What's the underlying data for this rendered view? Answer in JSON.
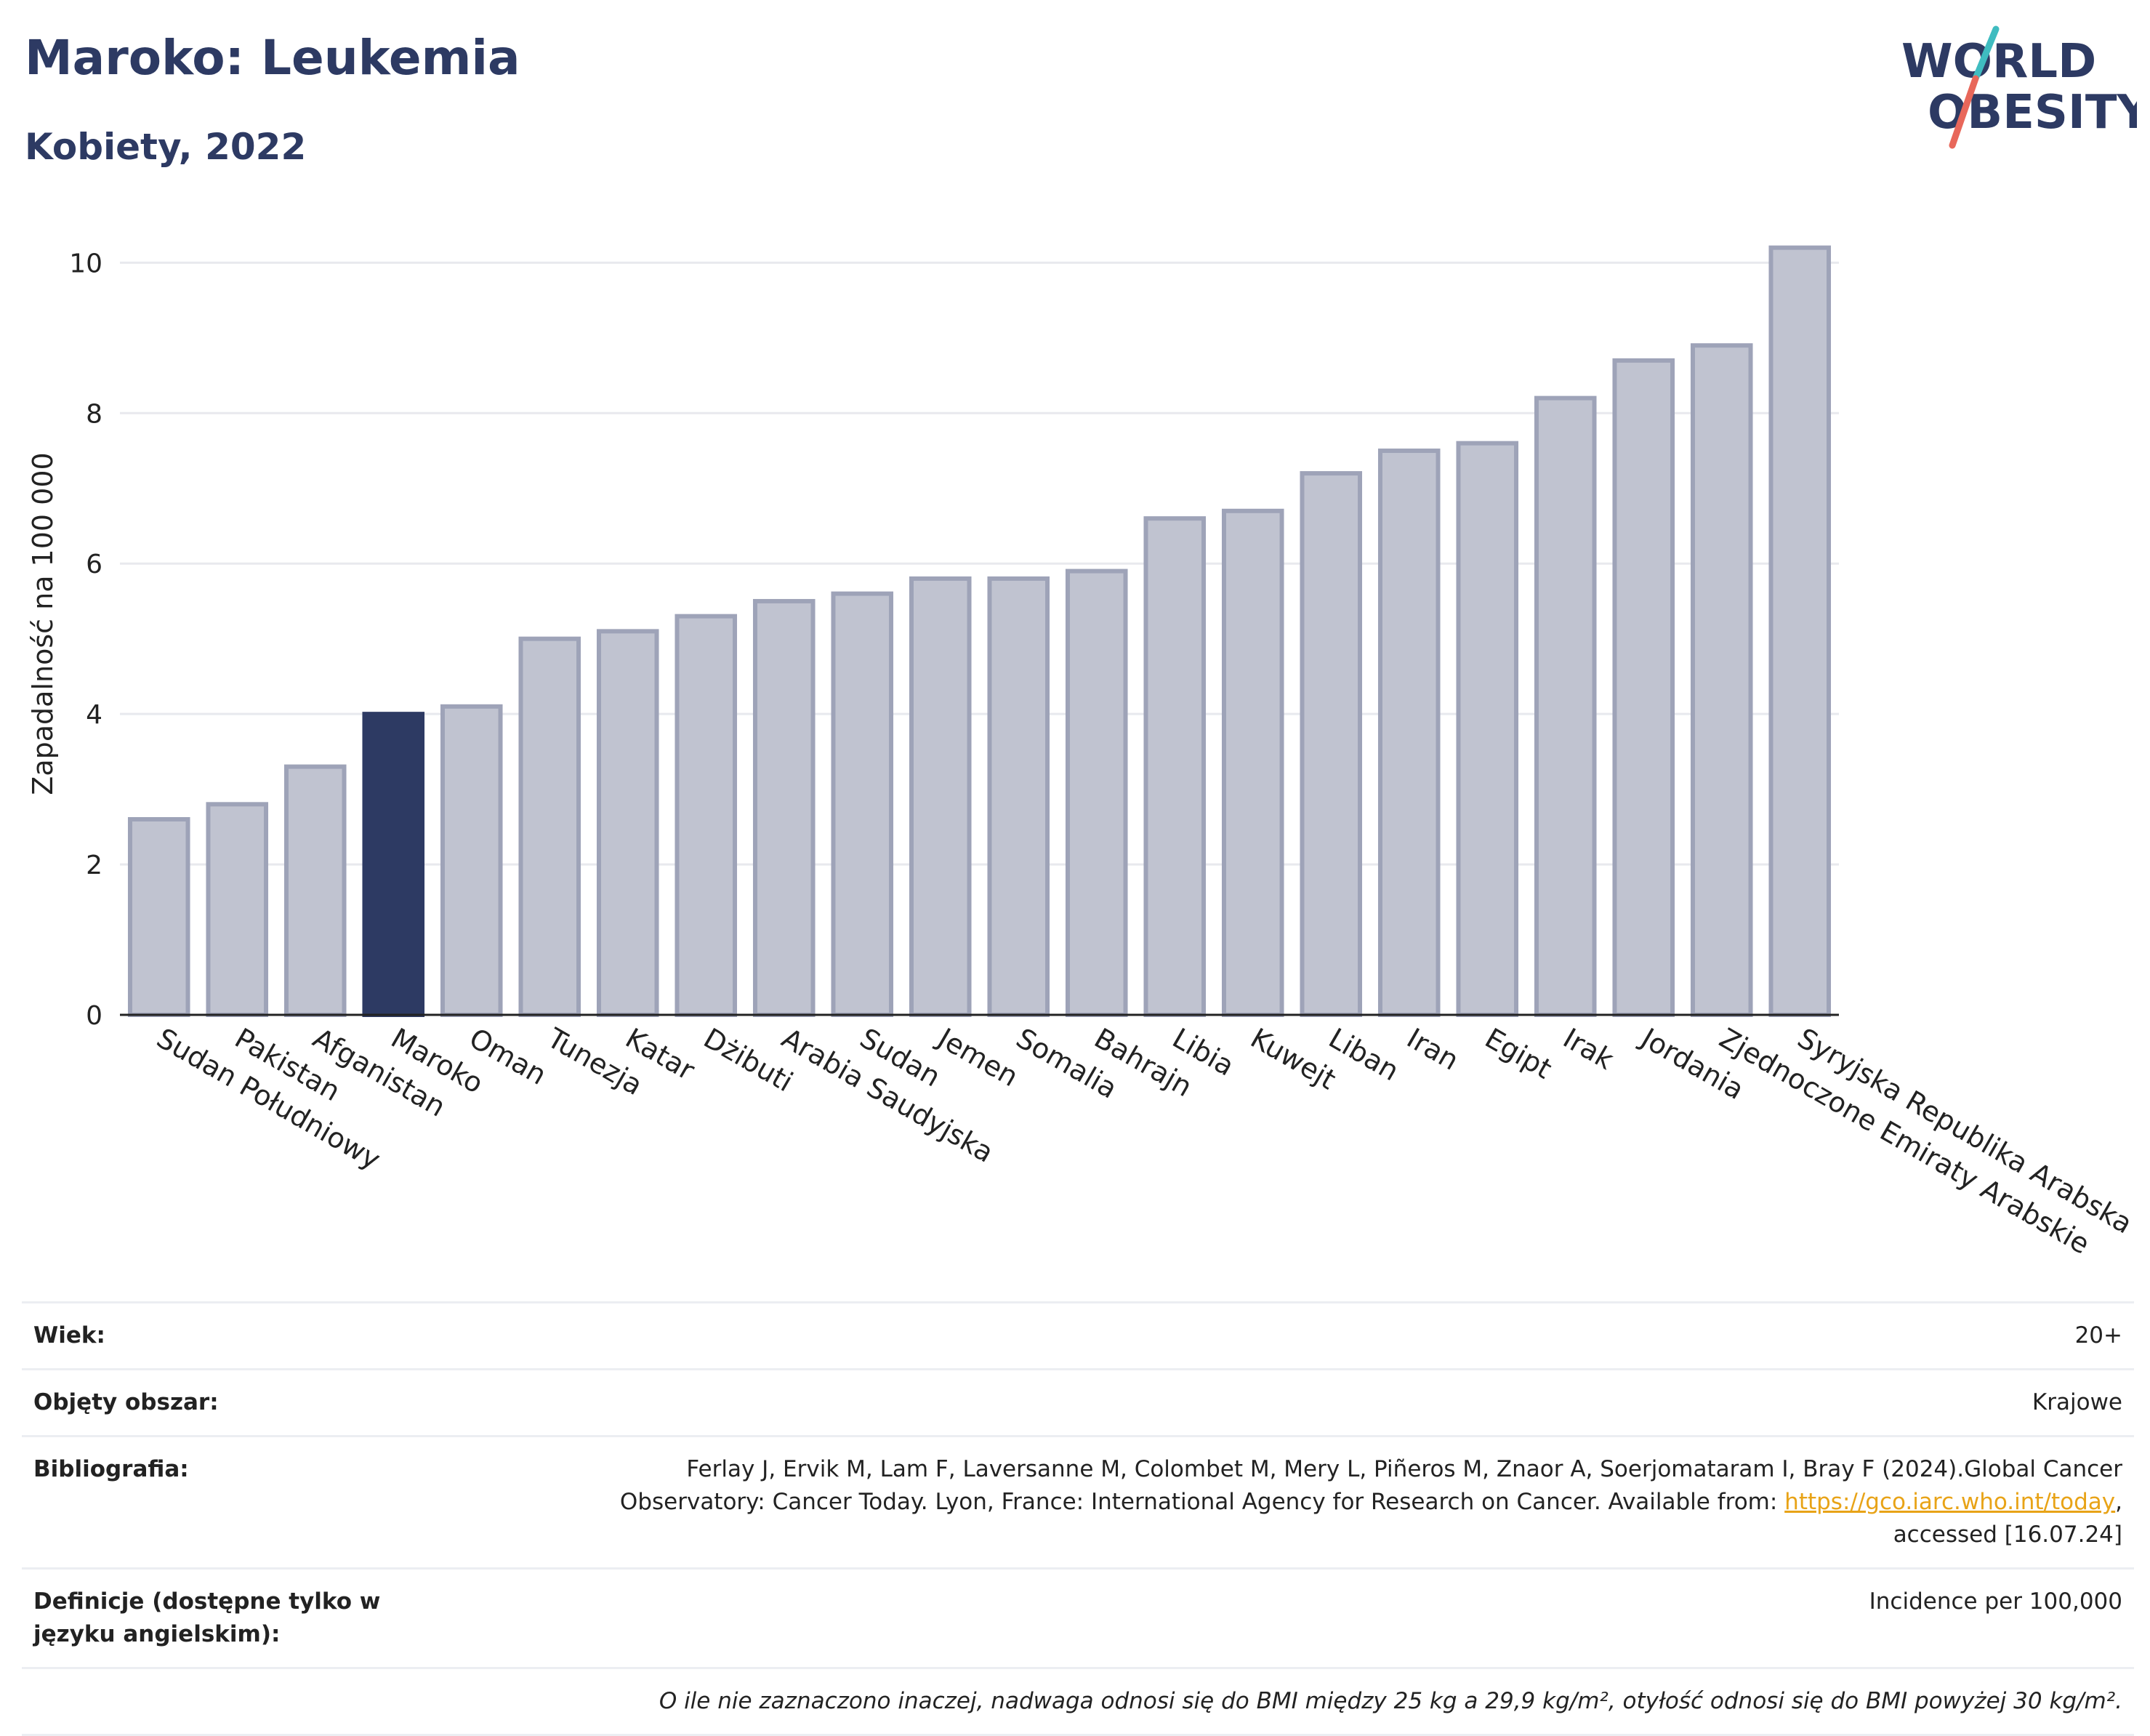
{
  "header": {
    "title": "Maroko: Leukemia",
    "subtitle": "Kobiety, 2022"
  },
  "logo": {
    "line1": "WORLD",
    "line2": "OBESITY"
  },
  "chart_data": {
    "type": "bar",
    "ylabel": "Zapadalność na 100 000",
    "xlabel": "",
    "ylim": [
      0,
      10.4
    ],
    "yticks": [
      0,
      2,
      4,
      6,
      8,
      10
    ],
    "grid": true,
    "highlight": "Maroko",
    "categories": [
      "Sudan Południowy",
      "Pakistan",
      "Afganistan",
      "Maroko",
      "Oman",
      "Tunezja",
      "Katar",
      "Dżibuti",
      "Arabia Saudyjska",
      "Sudan",
      "Jemen",
      "Somalia",
      "Bahrajn",
      "Libia",
      "Kuwejt",
      "Liban",
      "Iran",
      "Egipt",
      "Irak",
      "Jordania",
      "Zjednoczone Emiraty Arabskie",
      "Syryjska Republika Arabska"
    ],
    "values": [
      2.6,
      2.8,
      3.3,
      4.0,
      4.1,
      5.0,
      5.1,
      5.3,
      5.5,
      5.6,
      5.8,
      5.8,
      5.9,
      6.6,
      6.7,
      7.2,
      7.5,
      7.6,
      8.2,
      8.7,
      8.9,
      10.2
    ],
    "colors": {
      "bar": "#c0c3d0",
      "bar_border": "#9ea3b8",
      "highlight": "#2d3a63",
      "grid": "#e8e9ee"
    }
  },
  "info": {
    "age_label": "Wiek:",
    "age_value": "20+",
    "coverage_label": "Objęty obszar:",
    "coverage_value": "Krajowe",
    "bib_label": "Bibliografia:",
    "bib_text_1": "Ferlay J, Ervik M, Lam F, Laversanne M, Colombet M, Mery L, Piñeros M, Znaor A, Soerjomataram I, Bray F (2024).Global Cancer",
    "bib_text_2": "Observatory: Cancer Today. Lyon, France: International Agency for Research on Cancer. Available from: ",
    "bib_link": "https://gco.iarc.who.int/today",
    "bib_text_3": ",",
    "bib_text_4": "accessed [16.07.24]",
    "def_label": "Definicje (dostępne tylko w języku angielskim):",
    "def_value": "Incidence per 100,000",
    "note": "O ile nie zaznaczono inaczej, nadwaga odnosi się do BMI między 25 kg a 29,9 kg/m², otyłość odnosi się do BMI powyżej 30 kg/m²."
  }
}
